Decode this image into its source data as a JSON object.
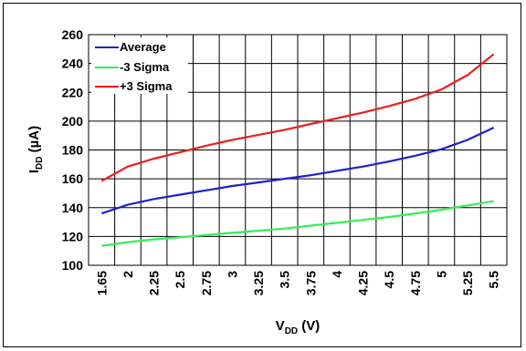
{
  "chart_data": {
    "type": "line",
    "title": "",
    "xlabel": {
      "main": "V",
      "sub": "DD",
      "unit": " (V)"
    },
    "ylabel": {
      "main": "I",
      "sub": "DD",
      "unit": " (µA)"
    },
    "categories": [
      "1.65",
      "2",
      "2.25",
      "2.5",
      "2.75",
      "3",
      "3.25",
      "3.5",
      "3.75",
      "4",
      "4.25",
      "4.5",
      "4.75",
      "5",
      "5.25",
      "5.5"
    ],
    "x": [
      1.65,
      2,
      2.25,
      2.5,
      2.75,
      3,
      3.25,
      3.5,
      3.75,
      4,
      4.25,
      4.5,
      4.75,
      5,
      5.25,
      5.5
    ],
    "ylim": [
      100,
      260
    ],
    "yticks": [
      100,
      120,
      140,
      160,
      180,
      200,
      220,
      240,
      260
    ],
    "grid": true,
    "legend_position": "top-left",
    "series": [
      {
        "name": "Average",
        "color": "#1f1fcc",
        "values": [
          136,
          142,
          146,
          149,
          152,
          155,
          157.5,
          160,
          162.5,
          165.5,
          168.5,
          172,
          176,
          180.5,
          187,
          195.5
        ]
      },
      {
        "name": "-3 Sigma",
        "color": "#33ee55",
        "values": [
          113.5,
          116,
          118,
          119.5,
          121,
          122.5,
          124,
          125.5,
          127.5,
          129.5,
          131.5,
          133.5,
          136,
          138.5,
          141.5,
          144.5
        ]
      },
      {
        "name": "+3 Sigma",
        "color": "#ee1c1c",
        "values": [
          158.5,
          168.5,
          174,
          178.5,
          183,
          187,
          190.5,
          194,
          198,
          202,
          206,
          210.5,
          215.5,
          222,
          232,
          246.5
        ]
      }
    ]
  }
}
